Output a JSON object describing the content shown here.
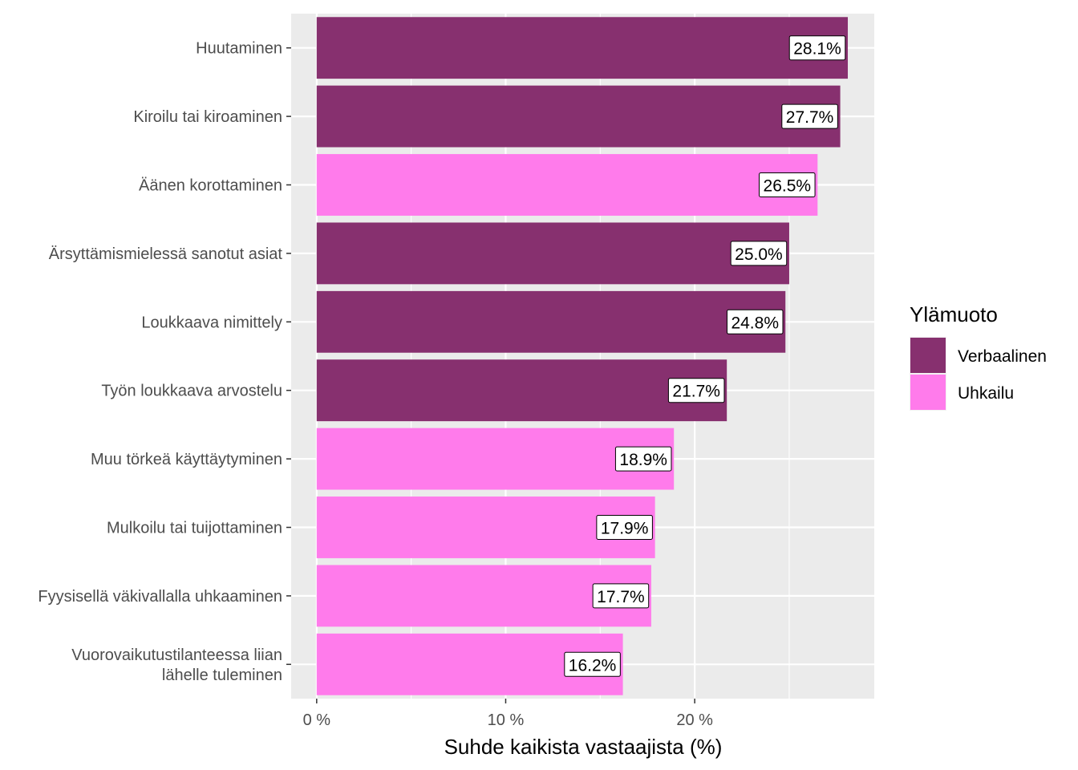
{
  "chart_data": {
    "type": "bar",
    "orientation": "horizontal",
    "categories": [
      "Huutaminen",
      "Kiroilu tai kiroaminen",
      "Äänen korottaminen",
      "Ärsyttämismielessä sanotut asiat",
      "Loukkaava nimittely",
      "Työn loukkaava arvostelu",
      "Muu törkeä käyttäytyminen",
      "Mulkoilu tai tuijottaminen",
      "Fyysisellä väkivallalla uhkaaminen",
      "Vuorovaikutustilanteessa liian\nlähelle tuleminen"
    ],
    "values": [
      28.1,
      27.7,
      26.5,
      25.0,
      24.8,
      21.7,
      18.9,
      17.9,
      17.7,
      16.2
    ],
    "labels": [
      "28.1%",
      "27.7%",
      "26.5%",
      "25.0%",
      "24.8%",
      "21.7%",
      "18.9%",
      "17.9%",
      "17.7%",
      "16.2%"
    ],
    "groups": [
      "Verbaalinen",
      "Verbaalinen",
      "Uhkailu",
      "Verbaalinen",
      "Verbaalinen",
      "Verbaalinen",
      "Uhkailu",
      "Uhkailu",
      "Uhkailu",
      "Uhkailu"
    ],
    "xlabel": "Suhde kaikista vastaajista (%)",
    "ylabel": "",
    "xlim": [
      -1.35,
      29.5
    ],
    "xticks": [
      0,
      10,
      20
    ],
    "xtick_labels": [
      "0 %",
      "10 %",
      "20 %"
    ],
    "grid": true,
    "legend": {
      "title": "Ylämuoto",
      "position": "right",
      "entries": [
        {
          "name": "Verbaalinen",
          "color": "#87306F"
        },
        {
          "name": "Uhkailu",
          "color": "#FF7BEB"
        }
      ]
    },
    "colors": {
      "panel_background": "#EBEBEB",
      "grid": "#FFFFFF"
    }
  }
}
